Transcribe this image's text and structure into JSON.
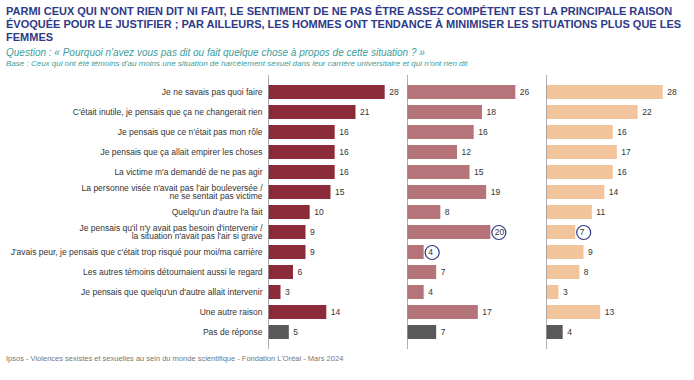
{
  "chart_data": {
    "type": "bar",
    "orientation": "horizontal",
    "title": "PARMI CEUX QUI N'ONT RIEN DIT NI FAIT, LE SENTIMENT DE NE PAS ÊTRE ASSEZ COMPÉTENT EST LA PRINCIPALE RAISON ÉVOQUÉE POUR LE JUSTIFIER ; PAR AILLEURS, LES HOMMES ONT TENDANCE À MINIMISER LES SITUATIONS PLUS QUE LES FEMMES",
    "subtitle": "Question : « Pourquoi n'avez vous pas dit ou fait quelque chose à propos de cette situation ? »",
    "note": "Base : Ceux qui ont été témoins d'au moins une situation de harcèlement sexuel dans leur carrière universitaire et qui n'ont rien dit",
    "source": "Ipsos - Violences sexistes et sexuelles au sein du monde scientifique - Fondation L'Oréal - Mars 2024",
    "categories": [
      "Je ne savais pas quoi faire",
      "C'était inutile, je pensais que ça ne changerait rien",
      "Je pensais que ce n'était pas mon rôle",
      "Je pensais que ça allait empirer les choses",
      "La victime m'a demandé de ne pas agir",
      "La personne visée n'avait pas l'air bouleversée /\nne se sentait pas victime",
      "Quelqu'un d'autre l'a fait",
      "Je pensais qu'il n'y avait pas besoin d'intervenir /\nla situation n'avait pas l'air si grave",
      "J'avais peur, je pensais que c'était trop risqué pour moi/ma carrière",
      "Les autres témoins détournaient aussi le regard",
      "Je pensais que quelqu'un d'autre allait intervenir",
      "Une autre raison",
      "Pas de réponse"
    ],
    "series": [
      {
        "colors": [
          "#8B2B3A",
          "#8B2B3A",
          "#8B2B3A",
          "#8B2B3A",
          "#8B2B3A",
          "#8B2B3A",
          "#8B2B3A",
          "#8B2B3A",
          "#8B2B3A",
          "#8B2B3A",
          "#8B2B3A",
          "#8B2B3A",
          "#595959"
        ],
        "values": [
          28,
          21,
          16,
          16,
          16,
          15,
          10,
          9,
          9,
          6,
          3,
          14,
          5
        ],
        "circled": []
      },
      {
        "colors": [
          "#B5737A",
          "#B5737A",
          "#B5737A",
          "#B5737A",
          "#B5737A",
          "#B5737A",
          "#B5737A",
          "#B5737A",
          "#B5737A",
          "#B5737A",
          "#B5737A",
          "#B5737A",
          "#595959"
        ],
        "values": [
          26,
          18,
          16,
          12,
          15,
          19,
          8,
          20,
          4,
          7,
          4,
          17,
          7
        ],
        "circled": [
          7,
          8
        ]
      },
      {
        "colors": [
          "#F2C49B",
          "#F2C49B",
          "#F2C49B",
          "#F2C49B",
          "#F2C49B",
          "#F2C49B",
          "#F2C49B",
          "#F2C49B",
          "#F2C49B",
          "#F2C49B",
          "#F2C49B",
          "#F2C49B",
          "#595959"
        ],
        "values": [
          28,
          22,
          16,
          17,
          16,
          14,
          11,
          7,
          9,
          8,
          3,
          13,
          4
        ],
        "circled": [
          7
        ]
      }
    ],
    "xlim": [
      0,
      30
    ],
    "tick_labels": "y",
    "data_labels": true
  }
}
